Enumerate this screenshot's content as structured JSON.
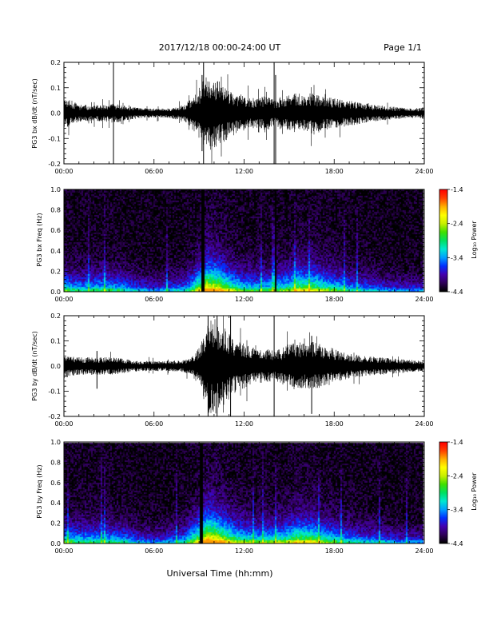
{
  "header": {
    "title": "2017/12/18   00:00-24:00 UT",
    "page": "Page 1/1"
  },
  "footer": {
    "xlabel": "Universal Time (hh:mm)"
  },
  "colorbar": {
    "label": "Log₁₀ Power",
    "ticks": [
      "-1.4",
      "-2.4",
      "-3.4",
      "-4.4"
    ],
    "tick_values": [
      -1.4,
      -2.4,
      -3.4,
      -4.4
    ],
    "range": [
      -4.4,
      -1.4
    ],
    "colormap": [
      "#000000",
      "#30005a",
      "#4400b0",
      "#0030ff",
      "#00a0ff",
      "#00e8d0",
      "#00e060",
      "#40e000",
      "#c8f000",
      "#ffff00",
      "#ffb000",
      "#ff4000",
      "#ff0000"
    ]
  },
  "chart_data": [
    {
      "type": "line",
      "ylabel": "PG3 bx dB/dt (nT/sec)",
      "xlim": [
        0,
        24
      ],
      "ylim": [
        -0.2,
        0.2
      ],
      "x_ticks": [
        "00:00",
        "06:00",
        "12:00",
        "18:00",
        "24:00"
      ],
      "y_ticks": [
        "-0.2",
        "-0.1",
        "0.0",
        "0.1",
        "0.2"
      ],
      "y_tick_values": [
        -0.2,
        -0.1,
        0.0,
        0.1,
        0.2
      ],
      "envelope": {
        "hours": [
          0,
          0.5,
          1,
          2,
          3,
          3.3,
          4,
          5,
          6,
          7,
          8,
          8.5,
          9,
          9.5,
          10,
          10.5,
          11,
          11.5,
          12,
          12.5,
          13,
          13.5,
          14,
          14.5,
          15,
          15.5,
          16,
          16.5,
          17,
          18,
          19,
          20,
          21,
          22,
          23,
          24
        ],
        "amplitude": [
          0.06,
          0.05,
          0.035,
          0.03,
          0.035,
          0.04,
          0.03,
          0.02,
          0.018,
          0.02,
          0.03,
          0.06,
          0.1,
          0.15,
          0.14,
          0.12,
          0.1,
          0.08,
          0.07,
          0.06,
          0.06,
          0.07,
          0.05,
          0.06,
          0.07,
          0.08,
          0.07,
          0.08,
          0.07,
          0.06,
          0.05,
          0.04,
          0.03,
          0.025,
          0.02,
          0.02
        ]
      },
      "spikes": [
        {
          "hour": 3.3,
          "min": -0.2,
          "max": 0.2
        },
        {
          "hour": 9.2,
          "min": -0.15,
          "max": 0.15
        },
        {
          "hour": 9.3,
          "min": -0.2,
          "max": 0.2
        },
        {
          "hour": 14.0,
          "min": -0.2,
          "max": 0.2
        },
        {
          "hour": 14.1,
          "min": -0.2,
          "max": 0.15
        }
      ],
      "seed": 11
    },
    {
      "type": "heatmap",
      "ylabel": "PG3 bx Freq (Hz)",
      "xlim": [
        0,
        24
      ],
      "ylim": [
        0,
        1
      ],
      "x_ticks": [
        "00:00",
        "06:00",
        "12:00",
        "18:00",
        "24:00"
      ],
      "y_ticks": [
        "0.0",
        "0.2",
        "0.4",
        "0.6",
        "0.8",
        "1.0"
      ],
      "y_tick_values": [
        0,
        0.2,
        0.4,
        0.6,
        0.8,
        1.0
      ],
      "activity": {
        "hours": [
          0,
          1,
          2,
          3,
          4,
          5,
          6,
          7,
          8,
          8.5,
          9,
          9.5,
          10,
          10.5,
          11,
          11.5,
          12,
          13,
          14,
          15,
          15.5,
          16,
          16.5,
          17,
          18,
          19,
          20,
          21,
          22,
          23,
          24
        ],
        "level": [
          0.55,
          0.45,
          0.5,
          0.5,
          0.45,
          0.35,
          0.3,
          0.35,
          0.4,
          0.55,
          0.75,
          0.95,
          0.9,
          0.8,
          0.7,
          0.6,
          0.55,
          0.5,
          0.55,
          0.6,
          0.75,
          0.7,
          0.72,
          0.65,
          0.55,
          0.45,
          0.4,
          0.35,
          0.3,
          0.3,
          0.3
        ]
      },
      "gaps": [
        {
          "from": 9.15,
          "to": 9.35
        },
        {
          "from": 14.0,
          "to": 14.12
        }
      ],
      "seed": 23
    },
    {
      "type": "line",
      "ylabel": "PG3 by dB/dt (nT/sec)",
      "xlim": [
        0,
        24
      ],
      "ylim": [
        -0.2,
        0.2
      ],
      "x_ticks": [
        "00:00",
        "06:00",
        "12:00",
        "18:00",
        "24:00"
      ],
      "y_ticks": [
        "-0.2",
        "-0.1",
        "0.0",
        "0.1",
        "0.2"
      ],
      "y_tick_values": [
        -0.2,
        -0.1,
        0.0,
        0.1,
        0.2
      ],
      "envelope": {
        "hours": [
          0,
          0.5,
          1,
          2,
          3,
          4,
          5,
          6,
          7,
          8,
          8.5,
          9,
          9.5,
          10,
          10.5,
          11,
          11.5,
          12,
          12.5,
          13,
          13.5,
          14,
          14.5,
          15,
          15.5,
          16,
          16.5,
          17,
          18,
          19,
          20,
          21,
          22,
          23,
          24
        ],
        "amplitude": [
          0.05,
          0.04,
          0.035,
          0.035,
          0.035,
          0.03,
          0.02,
          0.02,
          0.02,
          0.025,
          0.035,
          0.08,
          0.18,
          0.2,
          0.17,
          0.13,
          0.1,
          0.09,
          0.08,
          0.07,
          0.07,
          0.06,
          0.07,
          0.09,
          0.1,
          0.09,
          0.1,
          0.09,
          0.07,
          0.05,
          0.04,
          0.035,
          0.03,
          0.025,
          0.02
        ]
      },
      "spikes": [
        {
          "hour": 2.2,
          "min": -0.09,
          "max": 0.06
        },
        {
          "hour": 9.6,
          "min": -0.2,
          "max": 0.2
        },
        {
          "hour": 10.2,
          "min": -0.2,
          "max": 0.2
        },
        {
          "hour": 11.1,
          "min": -0.2,
          "max": 0.2
        },
        {
          "hour": 14.0,
          "min": -0.2,
          "max": 0.2
        },
        {
          "hour": 16.5,
          "min": -0.19,
          "max": 0.12
        }
      ],
      "seed": 37
    },
    {
      "type": "heatmap",
      "ylabel": "PG3 by Freq (Hz)",
      "xlim": [
        0,
        24
      ],
      "ylim": [
        0,
        1
      ],
      "x_ticks": [
        "00:00",
        "06:00",
        "12:00",
        "18:00",
        "24:00"
      ],
      "y_ticks": [
        "0.0",
        "0.2",
        "0.4",
        "0.6",
        "0.8",
        "1.0"
      ],
      "y_tick_values": [
        0,
        0.2,
        0.4,
        0.6,
        0.8,
        1.0
      ],
      "activity": {
        "hours": [
          0,
          1,
          2,
          3,
          4,
          5,
          6,
          7,
          8,
          8.5,
          9,
          9.5,
          10,
          10.5,
          11,
          11.5,
          12,
          13,
          14,
          15,
          15.5,
          16,
          16.5,
          17,
          18,
          19,
          20,
          21,
          22,
          23,
          24
        ],
        "level": [
          0.55,
          0.5,
          0.5,
          0.5,
          0.45,
          0.35,
          0.3,
          0.35,
          0.45,
          0.6,
          0.8,
          1.0,
          0.95,
          0.85,
          0.75,
          0.65,
          0.6,
          0.55,
          0.6,
          0.65,
          0.75,
          0.72,
          0.75,
          0.65,
          0.55,
          0.45,
          0.4,
          0.38,
          0.32,
          0.3,
          0.3
        ]
      },
      "gaps": [
        {
          "from": 9.05,
          "to": 9.25
        }
      ],
      "seed": 41
    }
  ]
}
